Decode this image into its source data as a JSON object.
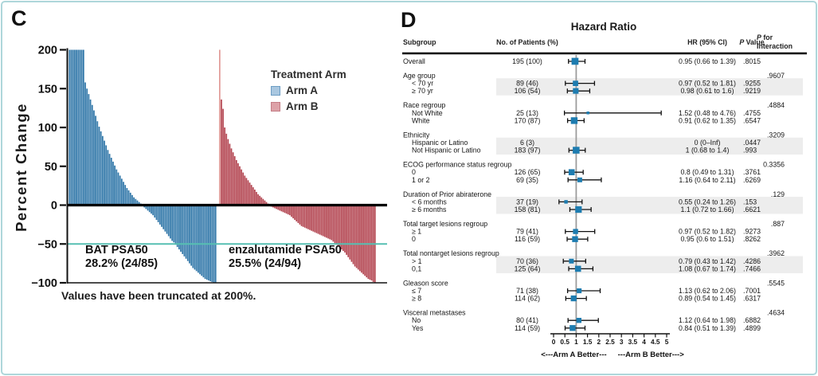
{
  "figure": {
    "border_color": "#aed6da",
    "background": "#ffffff"
  },
  "panel_c": {
    "label": "C",
    "ylabel": "Percent Change",
    "legend": {
      "title": "Treatment Arm",
      "items": [
        {
          "label": "Arm A",
          "fill": "#a9c7e0",
          "border": "#6d9dc4"
        },
        {
          "label": "Arm B",
          "fill": "#dda2a8",
          "border": "#c47d86"
        }
      ]
    },
    "arm_a_color": "#2f76a8",
    "arm_b_color": "#b2424e",
    "arm_b_first_bar_color": "#e09a96",
    "threshold_line_color": "#56bfb2",
    "footnote": "Values have been truncated at 200%."
  },
  "panel_d": {
    "label": "D",
    "title": "Hazard Ratio",
    "columns": {
      "subgroup": "Subgroup",
      "patients": "No. of Patients (%)",
      "hr": "HR (95% CI)",
      "p_italic": "P",
      "p_rest": " Value",
      "pint_l1_italic": "P",
      "pint_l1_rest": " for",
      "pint_l2": "Interaction"
    },
    "marker_color": "#1d7cb0",
    "band_color": "#ededed",
    "footer_left": "<---Arm A Better---",
    "footer_right": "---Arm B Better--->"
  },
  "chart_data": [
    {
      "type": "bar",
      "subtype": "waterfall",
      "ylabel": "Percent Change",
      "ylim": [
        -100,
        200
      ],
      "yticks": [
        {
          "v": 200,
          "label": "200"
        },
        {
          "v": 150,
          "label": "150"
        },
        {
          "v": 100,
          "label": "100"
        },
        {
          "v": 50,
          "label": "50"
        },
        {
          "v": 0,
          "label": "0"
        },
        {
          "v": -50,
          "label": "−50"
        },
        {
          "v": -100,
          "label": "−100"
        }
      ],
      "threshold": -50,
      "truncated_at": 200,
      "note": "Values have been truncated at 200%.",
      "series": [
        {
          "name": "Arm A",
          "label": "BAT PSA50",
          "stat": "28.2% (24/85)",
          "values": [
            200,
            200,
            200,
            200,
            200,
            200,
            200,
            200,
            200,
            158,
            150,
            143,
            136,
            129,
            122,
            115,
            108,
            101,
            95,
            89,
            83,
            77,
            71,
            66,
            61,
            56,
            51,
            46,
            42,
            38,
            34,
            30,
            26,
            22,
            19,
            16,
            13,
            10,
            8,
            6,
            4,
            2,
            -1,
            -3,
            -5,
            -7,
            -9,
            -11,
            -13,
            -16,
            -19,
            -22,
            -25,
            -28,
            -31,
            -34,
            -37,
            -40,
            -43,
            -46,
            -48,
            -51,
            -54,
            -57,
            -60,
            -63,
            -66,
            -69,
            -72,
            -75,
            -78,
            -81,
            -83,
            -85,
            -87,
            -89,
            -91,
            -93,
            -95,
            -96,
            -97,
            -98,
            -99,
            -100,
            -100
          ]
        },
        {
          "name": "Arm B",
          "label": "enzalutamide PSA50",
          "stat": "25.5% (24/94)",
          "values": [
            200,
            136,
            124,
            100,
            92,
            85,
            79,
            73,
            68,
            63,
            58,
            54,
            50,
            46,
            42,
            38,
            35,
            32,
            29,
            26,
            23,
            20,
            17,
            14,
            12,
            10,
            8,
            6,
            4,
            2,
            -1,
            -2,
            -3,
            -4,
            -5,
            -6,
            -7,
            -8,
            -9,
            -10,
            -11,
            -12,
            -13,
            -15,
            -17,
            -19,
            -21,
            -23,
            -25,
            -27,
            -28,
            -29,
            -30,
            -31,
            -32,
            -33,
            -34,
            -35,
            -36,
            -37,
            -38,
            -39,
            -40,
            -41,
            -42,
            -43,
            -44,
            -45,
            -47,
            -49,
            -51,
            -53,
            -55,
            -57,
            -59,
            -61,
            -64,
            -67,
            -70,
            -73,
            -76,
            -79,
            -81,
            -83,
            -85,
            -87,
            -89,
            -91,
            -93,
            -95,
            -96,
            -97,
            -99,
            -100
          ]
        }
      ]
    },
    {
      "type": "forest",
      "title": "Hazard Ratio",
      "axis": {
        "min": 0,
        "max": 5,
        "ref": 1,
        "tick_labels": [
          "0",
          "0.5",
          "1",
          "1.5",
          "2",
          "2.5",
          "3",
          "3.5",
          "4",
          "4.5",
          "5"
        ]
      },
      "footer": [
        "<---Arm A Better---",
        "---Arm B Better--->"
      ],
      "groups": [
        {
          "header": null,
          "p_int": null,
          "shaded": false,
          "rows": [
            {
              "label": "Overall",
              "indent": 0,
              "n_val": 195,
              "n": "195 (100)",
              "hr": 0.95,
              "lo": 0.66,
              "hi": 1.39,
              "hr_text": "0.95 (0.66 to 1.39)",
              "p": ".8015"
            }
          ]
        },
        {
          "header": "Age group",
          "p_int": ".9607",
          "shaded": true,
          "rows": [
            {
              "label": "< 70 yr",
              "indent": 1,
              "n_val": 89,
              "n": "89 (46)",
              "hr": 0.97,
              "lo": 0.52,
              "hi": 1.81,
              "hr_text": "0.97 (0.52 to 1.81)",
              "p": ".9255"
            },
            {
              "label": "≥ 70 yr",
              "indent": 1,
              "n_val": 106,
              "n": "106 (54)",
              "hr": 0.98,
              "lo": 0.61,
              "hi": 1.6,
              "hr_text": "0.98 (0.61 to 1.6)",
              "p": ".9219"
            }
          ]
        },
        {
          "header": "Race regroup",
          "p_int": ".4884",
          "shaded": false,
          "rows": [
            {
              "label": "Not White",
              "indent": 1,
              "n_val": 25,
              "n": "25 (13)",
              "hr": 1.52,
              "lo": 0.48,
              "hi": 4.76,
              "hr_text": "1.52 (0.48 to 4.76)",
              "p": ".4755"
            },
            {
              "label": "White",
              "indent": 1,
              "n_val": 170,
              "n": "170 (87)",
              "hr": 0.91,
              "lo": 0.62,
              "hi": 1.35,
              "hr_text": "0.91 (0.62 to 1.35)",
              "p": ".6547"
            }
          ]
        },
        {
          "header": "Ethnicity",
          "p_int": ".3209",
          "shaded": true,
          "rows": [
            {
              "label": "Hispanic or Latino",
              "indent": 1,
              "n_val": 6,
              "n": "6 (3)",
              "hr": null,
              "lo": null,
              "hi": null,
              "hr_text": "0 (0–Inf)",
              "p": ".0447"
            },
            {
              "label": "Not Hispanic or Latino",
              "indent": 1,
              "n_val": 183,
              "n": "183 (97)",
              "hr": 1,
              "lo": 0.68,
              "hi": 1.4,
              "hr_text": "1 (0.68 to 1.4)",
              "p": ".993"
            }
          ]
        },
        {
          "header": "ECOG performance status regroup",
          "p_int": "0.3356",
          "shaded": false,
          "rows": [
            {
              "label": "0",
              "indent": 1,
              "n_val": 126,
              "n": "126 (65)",
              "hr": 0.8,
              "lo": 0.49,
              "hi": 1.31,
              "hr_text": "0.8 (0.49 to 1.31)",
              "p": ".3761"
            },
            {
              "label": "1 or 2",
              "indent": 1,
              "n_val": 69,
              "n": "69 (35)",
              "hr": 1.16,
              "lo": 0.64,
              "hi": 2.11,
              "hr_text": "1.16 (0.64 to 2.11)",
              "p": ".6269"
            }
          ]
        },
        {
          "header": "Duration of Prior abiraterone",
          "p_int": ".129",
          "shaded": true,
          "rows": [
            {
              "label": "< 6 months",
              "indent": 1,
              "n_val": 37,
              "n": "37 (19)",
              "hr": 0.55,
              "lo": 0.24,
              "hi": 1.26,
              "hr_text": "0.55 (0.24 to 1.26)",
              "p": ".153"
            },
            {
              "label": "≥ 6 months",
              "indent": 1,
              "n_val": 158,
              "n": "158 (81)",
              "hr": 1.1,
              "lo": 0.72,
              "hi": 1.66,
              "hr_text": "1.1 (0.72 to 1.66)",
              "p": ".6621"
            }
          ]
        },
        {
          "header": "Total target lesions regroup",
          "p_int": ".887",
          "shaded": false,
          "rows": [
            {
              "label": "≥ 1",
              "indent": 1,
              "n_val": 79,
              "n": "79 (41)",
              "hr": 0.97,
              "lo": 0.52,
              "hi": 1.82,
              "hr_text": "0.97 (0.52 to 1.82)",
              "p": ".9273"
            },
            {
              "label": "0",
              "indent": 1,
              "n_val": 116,
              "n": "116 (59)",
              "hr": 0.95,
              "lo": 0.6,
              "hi": 1.51,
              "hr_text": "0.95 (0.6 to 1.51)",
              "p": ".8262"
            }
          ]
        },
        {
          "header": "Total nontarget lesions regroup",
          "p_int": ".3962",
          "shaded": true,
          "rows": [
            {
              "label": "> 1",
              "indent": 1,
              "n_val": 70,
              "n": "70 (36)",
              "hr": 0.79,
              "lo": 0.43,
              "hi": 1.42,
              "hr_text": "0.79 (0.43 to 1.42)",
              "p": ".4286"
            },
            {
              "label": "0,1",
              "indent": 1,
              "n_val": 125,
              "n": "125 (64)",
              "hr": 1.08,
              "lo": 0.67,
              "hi": 1.74,
              "hr_text": "1.08 (0.67 to 1.74)",
              "p": ".7466"
            }
          ]
        },
        {
          "header": "Gleason score",
          "p_int": ".5545",
          "shaded": false,
          "rows": [
            {
              "label": "≤ 7",
              "indent": 1,
              "n_val": 71,
              "n": "71 (38)",
              "hr": 1.13,
              "lo": 0.62,
              "hi": 2.06,
              "hr_text": "1.13 (0.62 to 2.06)",
              "p": ".7001"
            },
            {
              "label": "≥ 8",
              "indent": 1,
              "n_val": 114,
              "n": "114 (62)",
              "hr": 0.89,
              "lo": 0.54,
              "hi": 1.45,
              "hr_text": "0.89 (0.54 to 1.45)",
              "p": ".6317"
            }
          ]
        },
        {
          "header": "Visceral metastases",
          "p_int": ".4634",
          "shaded": false,
          "rows": [
            {
              "label": "No",
              "indent": 1,
              "n_val": 80,
              "n": "80 (41)",
              "hr": 1.12,
              "lo": 0.64,
              "hi": 1.98,
              "hr_text": "1.12 (0.64 to 1.98)",
              "p": ".6882"
            },
            {
              "label": "Yes",
              "indent": 1,
              "n_val": 114,
              "n": "114 (59)",
              "hr": 0.84,
              "lo": 0.51,
              "hi": 1.39,
              "hr_text": "0.84 (0.51 to 1.39)",
              "p": ".4899"
            }
          ]
        }
      ]
    }
  ]
}
